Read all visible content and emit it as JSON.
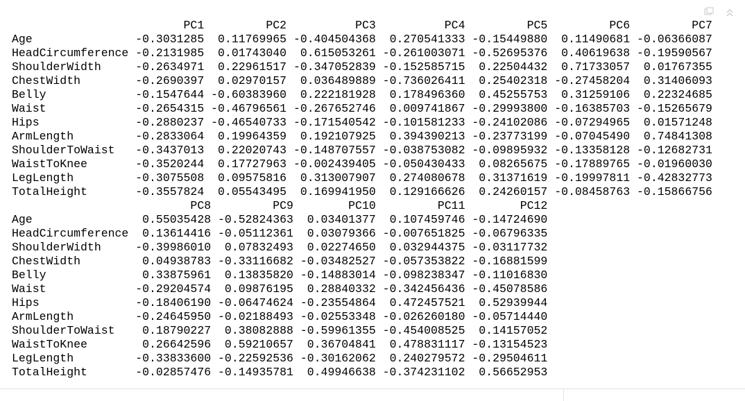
{
  "blocks": [
    {
      "headers": [
        "PC1",
        "PC2",
        "PC3",
        "PC4",
        "PC5",
        "PC6",
        "PC7"
      ],
      "rows": [
        {
          "name": "Age",
          "values": [
            "-0.3031285",
            "0.11769965",
            "-0.404504368",
            "0.270541333",
            "-0.15449880",
            "0.11490681",
            "-0.06366087"
          ]
        },
        {
          "name": "HeadCircumference",
          "values": [
            "-0.2131985",
            "0.01743040",
            "0.615053261",
            "-0.261003071",
            "-0.52695376",
            "0.40619638",
            "-0.19590567"
          ]
        },
        {
          "name": "ShoulderWidth",
          "values": [
            "-0.2634971",
            "0.22961517",
            "-0.347052839",
            "-0.152585715",
            "0.22504432",
            "0.71733057",
            "0.01767355"
          ]
        },
        {
          "name": "ChestWidth",
          "values": [
            "-0.2690397",
            "0.02970157",
            "0.036489889",
            "-0.736026411",
            "0.25402318",
            "-0.27458204",
            "0.31406093"
          ]
        },
        {
          "name": "Belly",
          "values": [
            "-0.1547644",
            "-0.60383960",
            "0.222181928",
            "0.178496360",
            "0.45255753",
            "0.31259106",
            "0.22324685"
          ]
        },
        {
          "name": "Waist",
          "values": [
            "-0.2654315",
            "-0.46796561",
            "-0.267652746",
            "0.009741867",
            "-0.29993800",
            "-0.16385703",
            "-0.15265679"
          ]
        },
        {
          "name": "Hips",
          "values": [
            "-0.2880237",
            "-0.46540733",
            "-0.171540542",
            "-0.101581233",
            "-0.24102086",
            "-0.07294965",
            "0.01571248"
          ]
        },
        {
          "name": "ArmLength",
          "values": [
            "-0.2833064",
            "0.19964359",
            "0.192107925",
            "0.394390213",
            "-0.23773199",
            "-0.07045490",
            "0.74841308"
          ]
        },
        {
          "name": "ShoulderToWaist",
          "values": [
            "-0.3437013",
            "0.22020743",
            "-0.148707557",
            "-0.038753082",
            "-0.09895932",
            "-0.13358128",
            "-0.12682731"
          ]
        },
        {
          "name": "WaistToKnee",
          "values": [
            "-0.3520244",
            "0.17727963",
            "-0.002439405",
            "-0.050430433",
            "0.08265675",
            "-0.17889765",
            "-0.01960030"
          ]
        },
        {
          "name": "LegLength",
          "values": [
            "-0.3075508",
            "0.09575816",
            "0.313007907",
            "0.274080678",
            "0.31371619",
            "-0.19997811",
            "-0.42832773"
          ]
        },
        {
          "name": "TotalHeight",
          "values": [
            "-0.3557824",
            "0.05543495",
            "0.169941950",
            "0.129166626",
            "0.24260157",
            "-0.08458763",
            "-0.15866756"
          ]
        }
      ]
    },
    {
      "headers": [
        "PC8",
        "PC9",
        "PC10",
        "PC11",
        "PC12"
      ],
      "rows": [
        {
          "name": "Age",
          "values": [
            "0.55035428",
            "-0.52824363",
            "0.03401377",
            "0.107459746",
            "-0.14724690"
          ]
        },
        {
          "name": "HeadCircumference",
          "values": [
            "0.13614416",
            "-0.05112361",
            "0.03079366",
            "-0.007651825",
            "-0.06796335"
          ]
        },
        {
          "name": "ShoulderWidth",
          "values": [
            "-0.39986010",
            "0.07832493",
            "0.02274650",
            "0.032944375",
            "-0.03117732"
          ]
        },
        {
          "name": "ChestWidth",
          "values": [
            "0.04938783",
            "-0.33116682",
            "-0.03482527",
            "-0.057353822",
            "-0.16881599"
          ]
        },
        {
          "name": "Belly",
          "values": [
            "0.33875961",
            "0.13835820",
            "-0.14883014",
            "-0.098238347",
            "-0.11016830"
          ]
        },
        {
          "name": "Waist",
          "values": [
            "-0.29204574",
            "0.09876195",
            "0.28840332",
            "-0.342456436",
            "-0.45078586"
          ]
        },
        {
          "name": "Hips",
          "values": [
            "-0.18406190",
            "-0.06474624",
            "-0.23554864",
            "0.472457521",
            "0.52939944"
          ]
        },
        {
          "name": "ArmLength",
          "values": [
            "-0.24645950",
            "-0.02188493",
            "-0.02553348",
            "-0.026260180",
            "-0.05714440"
          ]
        },
        {
          "name": "ShoulderToWaist",
          "values": [
            "0.18790227",
            "0.38082888",
            "-0.59961355",
            "-0.454008525",
            "0.14157052"
          ]
        },
        {
          "name": "WaistToKnee",
          "values": [
            "0.26642596",
            "0.59210657",
            "0.36704841",
            "0.478831117",
            "-0.13154523"
          ]
        },
        {
          "name": "LegLength",
          "values": [
            "-0.33833600",
            "-0.22592536",
            "-0.30162062",
            "0.240279572",
            "-0.29504611"
          ]
        },
        {
          "name": "TotalHeight",
          "values": [
            "-0.02857476",
            "-0.14935781",
            "0.49946638",
            "-0.374231102",
            "0.56652953"
          ]
        }
      ]
    }
  ]
}
